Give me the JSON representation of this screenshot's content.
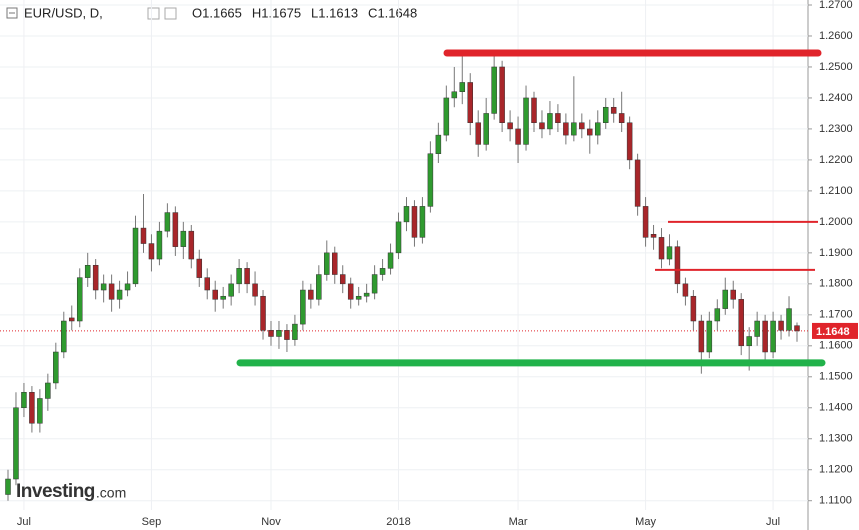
{
  "chart_data": {
    "type": "candlestick",
    "symbol": "EUR/USD, D,",
    "quote": [
      {
        "prefix": "O",
        "value": 1.1665
      },
      {
        "prefix": "H",
        "value": 1.1675
      },
      {
        "prefix": "L",
        "value": 1.1613
      },
      {
        "prefix": "C",
        "value": 1.1648
      }
    ],
    "watermark": [
      "Investing",
      ".com"
    ],
    "categories": [
      null,
      null,
      "Jul",
      null,
      null,
      null,
      null,
      null,
      null,
      null,
      null,
      null,
      null,
      null,
      null,
      null,
      null,
      null,
      "Sep",
      null,
      null,
      null,
      null,
      null,
      null,
      null,
      null,
      null,
      null,
      null,
      null,
      null,
      null,
      "Nov",
      null,
      null,
      null,
      null,
      null,
      null,
      null,
      null,
      null,
      null,
      null,
      null,
      null,
      null,
      null,
      "2018",
      null,
      null,
      null,
      null,
      null,
      null,
      null,
      null,
      null,
      null,
      null,
      null,
      null,
      null,
      "Mar",
      null,
      null,
      null,
      null,
      null,
      null,
      null,
      null,
      null,
      null,
      null,
      null,
      null,
      null,
      null,
      "May",
      null,
      null,
      null,
      null,
      null,
      null,
      null,
      null,
      null,
      null,
      null,
      null,
      null,
      null,
      null,
      "Jul",
      null,
      null,
      null
    ],
    "open": [
      1.112,
      1.117,
      1.14,
      1.145,
      1.135,
      1.143,
      1.148,
      1.158,
      1.169,
      1.168,
      1.182,
      1.186,
      1.178,
      1.18,
      1.175,
      1.178,
      1.18,
      1.198,
      1.193,
      1.188,
      1.197,
      1.203,
      1.192,
      1.197,
      1.188,
      1.182,
      1.178,
      1.175,
      1.176,
      1.18,
      1.185,
      1.18,
      1.176,
      1.165,
      1.163,
      1.165,
      1.162,
      1.167,
      1.178,
      1.175,
      1.183,
      1.19,
      1.183,
      1.18,
      1.175,
      1.176,
      1.177,
      1.183,
      1.185,
      1.19,
      1.2,
      1.205,
      1.195,
      1.205,
      1.222,
      1.228,
      1.24,
      1.242,
      1.245,
      1.232,
      1.225,
      1.235,
      1.25,
      1.232,
      1.23,
      1.225,
      1.24,
      1.232,
      1.23,
      1.235,
      1.232,
      1.228,
      1.232,
      1.23,
      1.228,
      1.232,
      1.237,
      1.235,
      1.232,
      1.22,
      1.205,
      1.196,
      1.195,
      1.188,
      1.192,
      1.18,
      1.176,
      1.168,
      1.158,
      1.168,
      1.172,
      1.178,
      1.175,
      1.16,
      1.163,
      1.168,
      1.158,
      1.168,
      1.165,
      1.1665
    ],
    "high": [
      1.12,
      1.145,
      1.148,
      1.147,
      1.146,
      1.151,
      1.161,
      1.171,
      1.173,
      1.185,
      1.19,
      1.188,
      1.183,
      1.183,
      1.181,
      1.184,
      1.202,
      1.209,
      1.196,
      1.2,
      1.206,
      1.205,
      1.2,
      1.199,
      1.191,
      1.185,
      1.181,
      1.179,
      1.183,
      1.188,
      1.187,
      1.184,
      1.178,
      1.168,
      1.168,
      1.167,
      1.17,
      1.181,
      1.18,
      1.186,
      1.194,
      1.192,
      1.186,
      1.182,
      1.179,
      1.18,
      1.186,
      1.188,
      1.193,
      1.203,
      1.208,
      1.207,
      1.208,
      1.226,
      1.232,
      1.244,
      1.25,
      1.254,
      1.248,
      1.236,
      1.24,
      1.254,
      1.252,
      1.236,
      1.234,
      1.244,
      1.242,
      1.236,
      1.239,
      1.238,
      1.235,
      1.247,
      1.235,
      1.233,
      1.236,
      1.24,
      1.24,
      1.242,
      1.234,
      1.222,
      1.208,
      1.199,
      1.198,
      1.196,
      1.194,
      1.182,
      1.178,
      1.17,
      1.171,
      1.175,
      1.182,
      1.181,
      1.177,
      1.166,
      1.171,
      1.17,
      1.171,
      1.17,
      1.176,
      1.1675
    ],
    "low": [
      1.11,
      1.115,
      1.137,
      1.132,
      1.132,
      1.139,
      1.146,
      1.156,
      1.165,
      1.166,
      1.179,
      1.175,
      1.174,
      1.171,
      1.172,
      1.176,
      1.179,
      1.19,
      1.184,
      1.186,
      1.195,
      1.189,
      1.188,
      1.185,
      1.179,
      1.175,
      1.171,
      1.172,
      1.173,
      1.177,
      1.177,
      1.173,
      1.162,
      1.16,
      1.159,
      1.158,
      1.16,
      1.165,
      1.172,
      1.173,
      1.181,
      1.18,
      1.177,
      1.172,
      1.173,
      1.174,
      1.175,
      1.181,
      1.183,
      1.188,
      1.197,
      1.192,
      1.193,
      1.203,
      1.219,
      1.226,
      1.237,
      1.238,
      1.228,
      1.221,
      1.223,
      1.233,
      1.229,
      1.226,
      1.219,
      1.223,
      1.229,
      1.227,
      1.228,
      1.229,
      1.225,
      1.226,
      1.227,
      1.222,
      1.225,
      1.23,
      1.232,
      1.229,
      1.217,
      1.202,
      1.192,
      1.191,
      1.185,
      1.186,
      1.177,
      1.173,
      1.165,
      1.151,
      1.156,
      1.165,
      1.17,
      1.172,
      1.157,
      1.152,
      1.16,
      1.155,
      1.156,
      1.162,
      1.163,
      1.1613
    ],
    "close": [
      1.117,
      1.14,
      1.145,
      1.135,
      1.143,
      1.148,
      1.158,
      1.168,
      1.168,
      1.182,
      1.186,
      1.178,
      1.18,
      1.175,
      1.178,
      1.18,
      1.198,
      1.193,
      1.188,
      1.197,
      1.203,
      1.192,
      1.197,
      1.188,
      1.182,
      1.178,
      1.175,
      1.176,
      1.18,
      1.185,
      1.18,
      1.176,
      1.165,
      1.163,
      1.165,
      1.162,
      1.167,
      1.178,
      1.175,
      1.183,
      1.19,
      1.183,
      1.18,
      1.175,
      1.176,
      1.177,
      1.183,
      1.185,
      1.19,
      1.2,
      1.205,
      1.195,
      1.205,
      1.222,
      1.228,
      1.24,
      1.242,
      1.245,
      1.232,
      1.225,
      1.235,
      1.25,
      1.232,
      1.23,
      1.225,
      1.24,
      1.232,
      1.23,
      1.235,
      1.232,
      1.228,
      1.232,
      1.23,
      1.228,
      1.232,
      1.237,
      1.235,
      1.232,
      1.22,
      1.205,
      1.195,
      1.195,
      1.188,
      1.192,
      1.18,
      1.176,
      1.168,
      1.158,
      1.168,
      1.172,
      1.178,
      1.175,
      1.16,
      1.163,
      1.168,
      1.158,
      1.168,
      1.165,
      1.172,
      1.1648
    ],
    "up_color": "#2f9a2f",
    "down_color": "#a8262a",
    "levels": [
      {
        "value": 1.2545,
        "color": "#e0242b"
      },
      {
        "value": 1.1545,
        "color": "#21b24a"
      },
      {
        "value": 1.2,
        "color": "#e0242b"
      },
      {
        "value": 1.1845,
        "color": "#e0242b"
      }
    ],
    "last_price": {
      "value": 1.1648,
      "label": "1.1648",
      "color": "#e0242b"
    },
    "ylim": [
      1.107,
      1.27
    ],
    "yticks": [
      {
        "value": 1.11,
        "label": "1.1100"
      },
      {
        "value": 1.12,
        "label": "1.1200"
      },
      {
        "value": 1.13,
        "label": "1.1300"
      },
      {
        "value": 1.14,
        "label": "1.1400"
      },
      {
        "value": 1.15,
        "label": "1.1500"
      },
      {
        "value": 1.16,
        "label": "1.1600"
      },
      {
        "value": 1.17,
        "label": "1.1700"
      },
      {
        "value": 1.18,
        "label": "1.1800"
      },
      {
        "value": 1.19,
        "label": "1.1900"
      },
      {
        "value": 1.2,
        "label": "1.2000"
      },
      {
        "value": 1.21,
        "label": "1.2100"
      },
      {
        "value": 1.22,
        "label": "1.2200"
      },
      {
        "value": 1.23,
        "label": "1.2300"
      },
      {
        "value": 1.24,
        "label": "1.2400"
      },
      {
        "value": 1.25,
        "label": "1.2500"
      },
      {
        "value": 1.26,
        "label": "1.2600"
      },
      {
        "value": 1.27,
        "label": "1.2700"
      }
    ],
    "grid": true
  }
}
